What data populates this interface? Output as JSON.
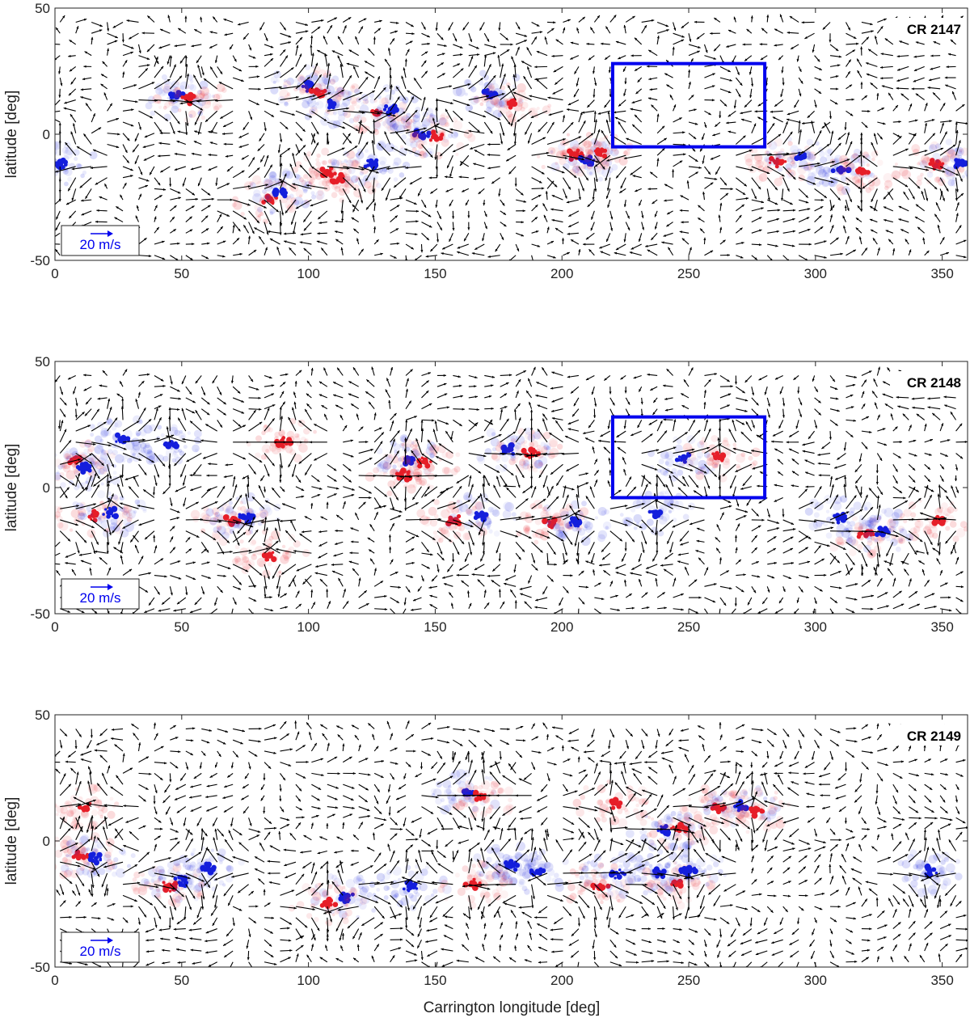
{
  "chart_data": [
    {
      "type": "vector-field",
      "title": "CR 2147",
      "xlabel": "",
      "ylabel": "latitude [deg]",
      "xlim": [
        0,
        360
      ],
      "ylim": [
        -50,
        50
      ],
      "xticks": [
        "0",
        "50",
        "100",
        "150",
        "200",
        "250",
        "300",
        "350"
      ],
      "yticks": [
        "50",
        "0",
        "-50"
      ],
      "scale_label": "20 m/s",
      "highlight_box": {
        "lon_min": 220,
        "lon_max": 280,
        "lat_min": -5,
        "lat_max": 28
      },
      "regions": [
        {
          "lon": 48,
          "lat": 15,
          "pol": "neg"
        },
        {
          "lon": 53,
          "lat": 14,
          "pol": "pos"
        },
        {
          "lon": 100,
          "lat": 19,
          "pol": "neg"
        },
        {
          "lon": 104,
          "lat": 17,
          "pol": "pos"
        },
        {
          "lon": 110,
          "lat": 12,
          "pol": "neg"
        },
        {
          "lon": 127,
          "lat": 8,
          "pol": "pos"
        },
        {
          "lon": 133,
          "lat": 10,
          "pol": "neg"
        },
        {
          "lon": 145,
          "lat": 0,
          "pol": "neg"
        },
        {
          "lon": 150,
          "lat": -1,
          "pol": "pos"
        },
        {
          "lon": 172,
          "lat": 16,
          "pol": "neg"
        },
        {
          "lon": 180,
          "lat": 12,
          "pol": "pos"
        },
        {
          "lon": 2,
          "lat": -12,
          "pol": "neg"
        },
        {
          "lon": 108,
          "lat": -15,
          "pol": "pos"
        },
        {
          "lon": 112,
          "lat": -18,
          "pol": "pos"
        },
        {
          "lon": 125,
          "lat": -12,
          "pol": "neg"
        },
        {
          "lon": 85,
          "lat": -26,
          "pol": "pos"
        },
        {
          "lon": 90,
          "lat": -23,
          "pol": "neg"
        },
        {
          "lon": 205,
          "lat": -8,
          "pol": "pos"
        },
        {
          "lon": 210,
          "lat": -10,
          "pol": "neg"
        },
        {
          "lon": 215,
          "lat": -7,
          "pol": "pos"
        },
        {
          "lon": 285,
          "lat": -11,
          "pol": "pos"
        },
        {
          "lon": 295,
          "lat": -9,
          "pol": "neg"
        },
        {
          "lon": 310,
          "lat": -14,
          "pol": "neg"
        },
        {
          "lon": 318,
          "lat": -15,
          "pol": "pos"
        },
        {
          "lon": 348,
          "lat": -12,
          "pol": "pos"
        },
        {
          "lon": 357,
          "lat": -11,
          "pol": "neg"
        }
      ]
    },
    {
      "type": "vector-field",
      "title": "CR 2148",
      "xlabel": "",
      "ylabel": "latitude [deg]",
      "xlim": [
        0,
        360
      ],
      "ylim": [
        -50,
        50
      ],
      "xticks": [
        "0",
        "50",
        "100",
        "150",
        "200",
        "250",
        "300",
        "350"
      ],
      "yticks": [
        "50",
        "0",
        "-50"
      ],
      "scale_label": "20 m/s",
      "highlight_box": {
        "lon_min": 220,
        "lon_max": 280,
        "lat_min": -4,
        "lat_max": 28
      },
      "regions": [
        {
          "lon": 8,
          "lat": 11,
          "pol": "pos"
        },
        {
          "lon": 12,
          "lat": 8,
          "pol": "neg"
        },
        {
          "lon": 26,
          "lat": 19,
          "pol": "neg"
        },
        {
          "lon": 45,
          "lat": 17,
          "pol": "neg"
        },
        {
          "lon": 90,
          "lat": 18,
          "pol": "pos"
        },
        {
          "lon": 140,
          "lat": 11,
          "pol": "neg"
        },
        {
          "lon": 146,
          "lat": 10,
          "pol": "pos"
        },
        {
          "lon": 138,
          "lat": 5,
          "pol": "pos"
        },
        {
          "lon": 180,
          "lat": 15,
          "pol": "neg"
        },
        {
          "lon": 188,
          "lat": 14,
          "pol": "pos"
        },
        {
          "lon": 248,
          "lat": 12,
          "pol": "neg"
        },
        {
          "lon": 262,
          "lat": 12,
          "pol": "pos"
        },
        {
          "lon": 15,
          "lat": -11,
          "pol": "pos"
        },
        {
          "lon": 22,
          "lat": -10,
          "pol": "neg"
        },
        {
          "lon": 70,
          "lat": -13,
          "pol": "pos"
        },
        {
          "lon": 75,
          "lat": -12,
          "pol": "neg"
        },
        {
          "lon": 158,
          "lat": -13,
          "pol": "pos"
        },
        {
          "lon": 168,
          "lat": -11,
          "pol": "neg"
        },
        {
          "lon": 196,
          "lat": -14,
          "pol": "pos"
        },
        {
          "lon": 205,
          "lat": -14,
          "pol": "neg"
        },
        {
          "lon": 237,
          "lat": -10,
          "pol": "neg"
        },
        {
          "lon": 310,
          "lat": -12,
          "pol": "neg"
        },
        {
          "lon": 320,
          "lat": -19,
          "pol": "pos"
        },
        {
          "lon": 326,
          "lat": -17,
          "pol": "neg"
        },
        {
          "lon": 348,
          "lat": -13,
          "pol": "pos"
        },
        {
          "lon": 85,
          "lat": -27,
          "pol": "pos"
        }
      ]
    },
    {
      "type": "vector-field",
      "title": "CR 2149",
      "xlabel": "Carrington longitude [deg]",
      "ylabel": "latitude [deg]",
      "xlim": [
        0,
        360
      ],
      "ylim": [
        -50,
        50
      ],
      "xticks": [
        "0",
        "50",
        "100",
        "150",
        "200",
        "250",
        "300",
        "350"
      ],
      "yticks": [
        "50",
        "0",
        "-50"
      ],
      "scale_label": "20 m/s",
      "highlight_box": null,
      "regions": [
        {
          "lon": 12,
          "lat": 13,
          "pol": "pos"
        },
        {
          "lon": 10,
          "lat": -6,
          "pol": "pos"
        },
        {
          "lon": 16,
          "lat": -7,
          "pol": "neg"
        },
        {
          "lon": 45,
          "lat": -18,
          "pol": "pos"
        },
        {
          "lon": 50,
          "lat": -16,
          "pol": "neg"
        },
        {
          "lon": 60,
          "lat": -11,
          "pol": "neg"
        },
        {
          "lon": 163,
          "lat": 19,
          "pol": "neg"
        },
        {
          "lon": 168,
          "lat": 18,
          "pol": "pos"
        },
        {
          "lon": 220,
          "lat": 15,
          "pol": "pos"
        },
        {
          "lon": 240,
          "lat": 4,
          "pol": "neg"
        },
        {
          "lon": 246,
          "lat": 5,
          "pol": "pos"
        },
        {
          "lon": 262,
          "lat": 13,
          "pol": "pos"
        },
        {
          "lon": 270,
          "lat": 14,
          "pol": "neg"
        },
        {
          "lon": 276,
          "lat": 12,
          "pol": "pos"
        },
        {
          "lon": 180,
          "lat": -10,
          "pol": "neg"
        },
        {
          "lon": 190,
          "lat": -12,
          "pol": "neg"
        },
        {
          "lon": 165,
          "lat": -17,
          "pol": "pos"
        },
        {
          "lon": 215,
          "lat": -18,
          "pol": "pos"
        },
        {
          "lon": 222,
          "lat": -13,
          "pol": "neg"
        },
        {
          "lon": 238,
          "lat": -13,
          "pol": "neg"
        },
        {
          "lon": 245,
          "lat": -17,
          "pol": "pos"
        },
        {
          "lon": 250,
          "lat": -12,
          "pol": "neg"
        },
        {
          "lon": 115,
          "lat": -22,
          "pol": "neg"
        },
        {
          "lon": 108,
          "lat": -25,
          "pol": "pos"
        },
        {
          "lon": 140,
          "lat": -18,
          "pol": "neg"
        },
        {
          "lon": 345,
          "lat": -12,
          "pol": "neg"
        }
      ]
    }
  ]
}
